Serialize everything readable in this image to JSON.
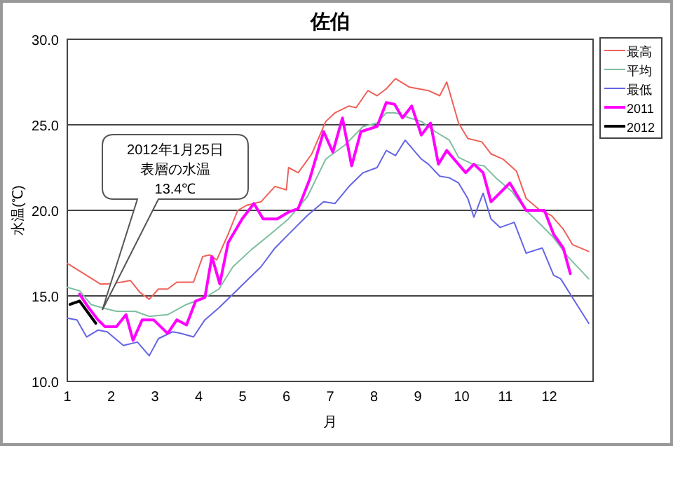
{
  "chart_data": {
    "type": "line",
    "title": "佐伯",
    "xlabel": "月",
    "ylabel": "水温(℃)",
    "xlim": [
      1,
      13
    ],
    "xticks": [
      1,
      2,
      3,
      4,
      5,
      6,
      7,
      8,
      9,
      10,
      11,
      12
    ],
    "ylim": [
      10,
      30
    ],
    "yticks": [
      {
        "value": 10,
        "label": "10.0"
      },
      {
        "value": 15,
        "label": "15.0"
      },
      {
        "value": 20,
        "label": "20.0"
      },
      {
        "value": 25,
        "label": "25.0"
      },
      {
        "value": 30,
        "label": "30.0"
      }
    ],
    "grid": "y",
    "legend": "right",
    "marker": "none",
    "line_style": "solid",
    "annotations": [
      "2012年1月25日",
      "表層の水温",
      "13.4℃"
    ],
    "series": [
      {
        "name": "最高",
        "color": "#f0605a",
        "x": [
          1.0,
          1.75,
          1.91,
          2.23,
          2.44,
          2.66,
          2.87,
          3.08,
          3.29,
          3.5,
          3.88,
          4.09,
          4.25,
          4.41,
          4.67,
          4.89,
          5.1,
          5.42,
          5.74,
          6.0,
          6.05,
          6.27,
          6.58,
          6.9,
          7.11,
          7.43,
          7.59,
          7.86,
          8.07,
          8.28,
          8.49,
          8.81,
          9.24,
          9.5,
          9.66,
          9.93,
          10.14,
          10.46,
          10.67,
          10.94,
          11.25,
          11.47,
          11.79,
          12.05,
          12.32,
          12.53,
          12.9
        ],
        "values": [
          16.9,
          15.7,
          15.7,
          15.8,
          15.9,
          15.2,
          14.8,
          15.4,
          15.4,
          15.8,
          15.8,
          17.3,
          17.4,
          17.1,
          18.6,
          20.0,
          20.3,
          20.5,
          21.4,
          21.2,
          22.5,
          22.2,
          23.3,
          25.2,
          25.7,
          26.1,
          26.0,
          27.0,
          26.7,
          27.1,
          27.7,
          27.2,
          27.0,
          26.7,
          27.5,
          25.1,
          24.2,
          24.0,
          23.3,
          23.0,
          22.3,
          20.7,
          20.0,
          19.7,
          18.9,
          18.0,
          17.6
        ]
      },
      {
        "name": "平均",
        "color": "#7fbf9f",
        "x": [
          1.0,
          1.28,
          1.54,
          1.8,
          2.12,
          2.55,
          2.87,
          3.29,
          3.72,
          4.14,
          4.46,
          4.78,
          5.2,
          5.63,
          6.05,
          6.48,
          6.9,
          7.33,
          7.75,
          8.07,
          8.28,
          8.49,
          8.81,
          9.08,
          9.4,
          9.72,
          9.93,
          10.25,
          10.51,
          10.78,
          11.15,
          11.47,
          11.79,
          12.1,
          12.42,
          12.9
        ],
        "values": [
          15.5,
          15.3,
          14.5,
          14.3,
          14.1,
          14.1,
          13.8,
          13.9,
          14.5,
          14.9,
          15.4,
          16.7,
          17.7,
          18.6,
          19.5,
          20.8,
          23.0,
          23.8,
          24.9,
          25.1,
          25.7,
          25.7,
          25.4,
          25.2,
          24.6,
          24.1,
          23.1,
          22.7,
          22.6,
          21.9,
          21.1,
          20.0,
          19.2,
          18.4,
          17.3,
          16.0
        ]
      },
      {
        "name": "最低",
        "color": "#6464e6",
        "x": [
          1.0,
          1.22,
          1.44,
          1.7,
          1.91,
          2.28,
          2.6,
          2.87,
          3.08,
          3.4,
          3.61,
          3.88,
          4.14,
          4.46,
          4.78,
          5.1,
          5.42,
          5.74,
          6.05,
          6.48,
          6.85,
          7.11,
          7.43,
          7.75,
          8.07,
          8.28,
          8.49,
          8.71,
          9.08,
          9.24,
          9.5,
          9.72,
          9.93,
          10.14,
          10.28,
          10.49,
          10.67,
          10.88,
          11.2,
          11.47,
          11.84,
          12.1,
          12.26,
          12.53,
          12.9
        ],
        "values": [
          13.7,
          13.6,
          12.6,
          13.0,
          12.9,
          12.1,
          12.3,
          11.5,
          12.5,
          12.9,
          12.8,
          12.6,
          13.6,
          14.3,
          15.1,
          15.9,
          16.7,
          17.8,
          18.6,
          19.7,
          20.5,
          20.4,
          21.4,
          22.2,
          22.5,
          23.5,
          23.2,
          24.1,
          23.0,
          22.7,
          22.0,
          21.9,
          21.6,
          20.7,
          19.6,
          21.0,
          19.5,
          19.0,
          19.3,
          17.5,
          17.8,
          16.2,
          16.0,
          14.9,
          13.4
        ]
      },
      {
        "name": "2011",
        "color": "#ff00ff",
        "x": [
          1.28,
          1.49,
          1.7,
          1.86,
          2.12,
          2.34,
          2.5,
          2.71,
          2.97,
          3.29,
          3.5,
          3.72,
          3.93,
          4.14,
          4.3,
          4.48,
          4.67,
          4.99,
          5.26,
          5.47,
          5.79,
          6.05,
          6.27,
          6.53,
          6.85,
          7.06,
          7.28,
          7.49,
          7.7,
          8.07,
          8.28,
          8.47,
          8.65,
          8.86,
          9.08,
          9.29,
          9.47,
          9.66,
          10.09,
          10.28,
          10.49,
          10.67,
          11.1,
          11.47,
          11.89,
          12.1,
          12.32,
          12.48
        ],
        "values": [
          15.1,
          14.3,
          13.6,
          13.2,
          13.2,
          13.9,
          12.4,
          13.6,
          13.6,
          12.8,
          13.6,
          13.3,
          14.7,
          14.9,
          17.3,
          15.7,
          18.1,
          19.5,
          20.4,
          19.5,
          19.5,
          19.9,
          20.1,
          21.8,
          24.6,
          23.4,
          25.4,
          22.6,
          24.6,
          24.9,
          26.3,
          26.2,
          25.4,
          26.1,
          24.4,
          25.1,
          22.7,
          23.5,
          22.2,
          22.7,
          22.2,
          20.5,
          21.6,
          20.0,
          20.0,
          18.6,
          17.8,
          16.3
        ]
      },
      {
        "name": "2012",
        "color": "#000000",
        "x": [
          1.06,
          1.28,
          1.65
        ],
        "values": [
          14.5,
          14.7,
          13.4
        ]
      }
    ]
  }
}
